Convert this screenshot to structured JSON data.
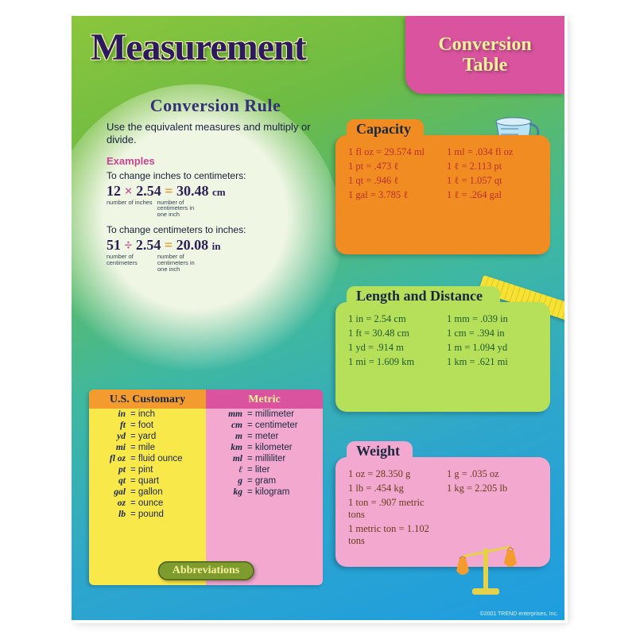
{
  "title": "Measurement",
  "corner_tab": "Conversion\nTable",
  "rule": {
    "heading": "Conversion Rule",
    "subtext": "Use the equivalent measures and multiply or divide.",
    "examples_label": "Examples",
    "ex1_intro": "To change inches to centimeters:",
    "ex1_equation_a": "12",
    "ex1_op": "×",
    "ex1_equation_b": "2.54",
    "ex1_eq": "=",
    "ex1_result": "30.48",
    "ex1_unit": "cm",
    "ex1_sub_a": "number of inches",
    "ex1_sub_b": "number of centimeters in one inch",
    "ex2_intro": "To change centimeters to inches:",
    "ex2_equation_a": "51",
    "ex2_op": "÷",
    "ex2_equation_b": "2.54",
    "ex2_eq": "=",
    "ex2_result": "20.08",
    "ex2_unit": "in",
    "ex2_sub_a": "number of centimeters",
    "ex2_sub_b": "number of centimeters in one inch"
  },
  "capacity": {
    "label": "Capacity",
    "rows": [
      [
        "1 fl oz = 29.574 ml",
        "1 ml = .034 fl oz"
      ],
      [
        "1 pt = .473 ℓ",
        "1 ℓ = 2.113 pt"
      ],
      [
        "1 qt = .946 ℓ",
        "1 ℓ = 1.057 qt"
      ],
      [
        "1 gal = 3.785 ℓ",
        "1 ℓ = .264 gal"
      ]
    ]
  },
  "length": {
    "label": "Length and Distance",
    "rows": [
      [
        "1 in = 2.54 cm",
        "1 mm = .039 in"
      ],
      [
        "1 ft = 30.48 cm",
        "1 cm = .394 in"
      ],
      [
        "1 yd = .914 m",
        "1 m = 1.094 yd"
      ],
      [
        "1 mi = 1.609 km",
        "1 km = .621 mi"
      ]
    ]
  },
  "weight": {
    "label": "Weight",
    "rows": [
      [
        "1 oz = 28.350 g",
        "1 g = .035 oz"
      ],
      [
        "1 lb = .454 kg",
        "1 kg = 2.205 lb"
      ],
      [
        "1 ton = .907 metric tons",
        ""
      ],
      [
        "1 metric ton = 1.102 tons",
        ""
      ]
    ]
  },
  "abbr": {
    "us_head": "U.S. Customary",
    "metric_head": "Metric",
    "badge": "Abbreviations",
    "us": [
      [
        "in",
        "inch"
      ],
      [
        "ft",
        "foot"
      ],
      [
        "yd",
        "yard"
      ],
      [
        "mi",
        "mile"
      ],
      [
        "fl oz",
        "fluid ounce"
      ],
      [
        "pt",
        "pint"
      ],
      [
        "qt",
        "quart"
      ],
      [
        "gal",
        "gallon"
      ],
      [
        "oz",
        "ounce"
      ],
      [
        "lb",
        "pound"
      ]
    ],
    "metric": [
      [
        "mm",
        "millimeter"
      ],
      [
        "cm",
        "centimeter"
      ],
      [
        "m",
        "meter"
      ],
      [
        "km",
        "kilometer"
      ],
      [
        "ml",
        "milliliter"
      ],
      [
        "ℓ",
        "liter"
      ],
      [
        "g",
        "gram"
      ],
      [
        "kg",
        "kilogram"
      ]
    ]
  },
  "copyright": "©2001 TREND enterprises, Inc.",
  "colors": {
    "bg_grad": [
      "#8bc63c",
      "#3fb8a0",
      "#1e9de0"
    ],
    "rule_circle": "#f0f6e4",
    "pink": "#d9539e",
    "orange": "#f18c22",
    "lime": "#b6e05a",
    "rose": "#f2a8cf",
    "yellow": "#f9e84a",
    "navy": "#2d1a5e"
  }
}
